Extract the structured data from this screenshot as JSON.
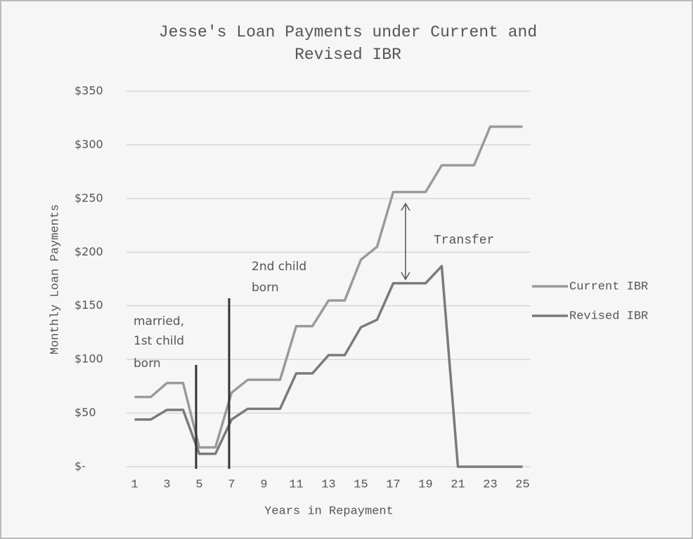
{
  "chart_data": {
    "type": "line",
    "title": [
      "Jesse's Loan Payments under Current and",
      "Revised IBR"
    ],
    "x_label": "Years in Repayment",
    "y_label": "Monthly Loan Payments",
    "x": [
      1,
      2,
      3,
      4,
      5,
      6,
      7,
      8,
      9,
      10,
      11,
      12,
      13,
      14,
      15,
      16,
      17,
      18,
      19,
      20,
      21,
      22,
      23,
      24,
      25
    ],
    "xlim": [
      0.5,
      25.5
    ],
    "xticks": [
      1,
      3,
      5,
      7,
      9,
      11,
      13,
      15,
      17,
      19,
      21,
      23,
      25
    ],
    "ylim": [
      0,
      350
    ],
    "yticks": [
      {
        "value": 0,
        "label": "$-"
      },
      {
        "value": 50,
        "label": "$50"
      },
      {
        "value": 100,
        "label": "$100"
      },
      {
        "value": 150,
        "label": "$150"
      },
      {
        "value": 200,
        "label": "$200"
      },
      {
        "value": 250,
        "label": "$250"
      },
      {
        "value": 300,
        "label": "$300"
      },
      {
        "value": 350,
        "label": "$350"
      }
    ],
    "grid": true,
    "legend": "right",
    "series": [
      {
        "name": "Current IBR",
        "color": "#9a9a9a",
        "values": [
          65,
          65,
          78,
          78,
          18,
          18,
          69,
          81,
          81,
          81,
          131,
          131,
          155,
          155,
          193,
          205,
          256,
          256,
          256,
          281,
          281,
          281,
          317,
          317,
          317
        ]
      },
      {
        "name": "Revised IBR",
        "color": "#7a7a7a",
        "values": [
          44,
          44,
          53,
          53,
          12,
          12,
          44,
          54,
          54,
          54,
          87,
          87,
          104,
          104,
          130,
          137,
          171,
          171,
          171,
          187,
          0,
          0,
          0,
          0,
          0
        ]
      }
    ],
    "annotations": [
      [
        "married,",
        "1st child",
        "born"
      ],
      [
        "2nd child",
        "born"
      ],
      [
        "Transfer"
      ]
    ]
  }
}
